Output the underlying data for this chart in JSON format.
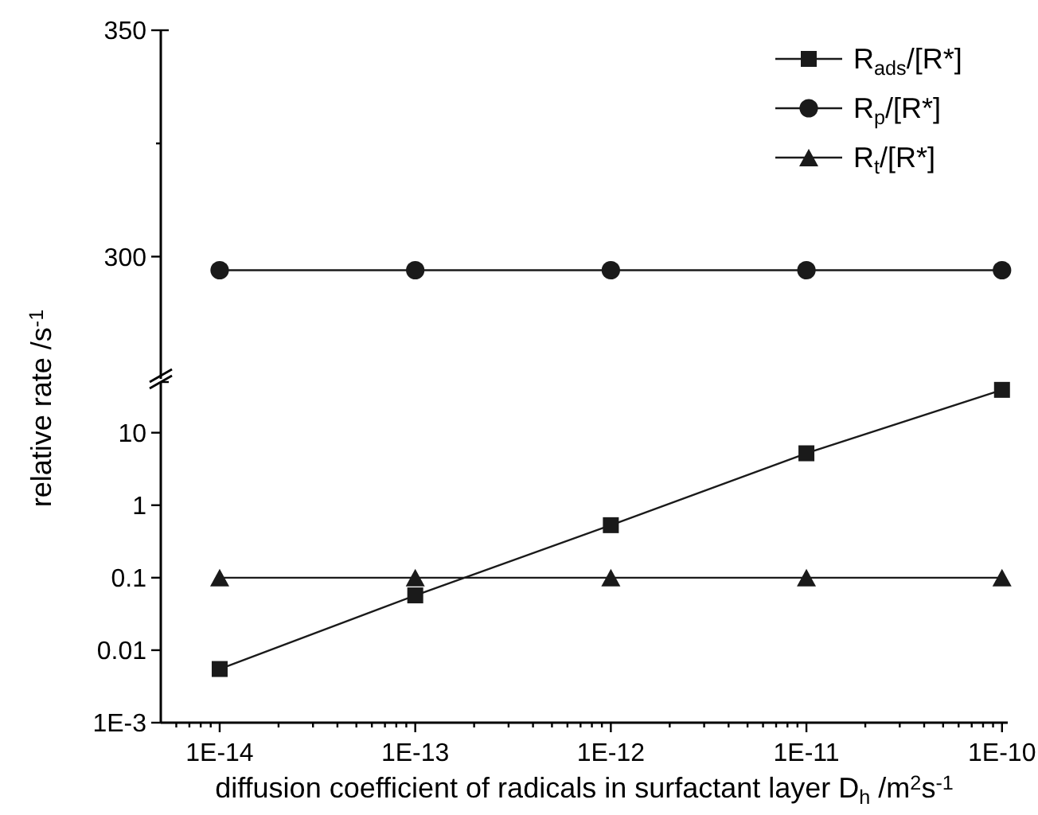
{
  "chart_data": [
    {
      "type": "line",
      "x": [
        1e-14,
        1e-13,
        1e-12,
        1e-11,
        1e-10
      ],
      "log": "x",
      "xlim": [
        5e-15,
        1.07e-10
      ],
      "ylim": [
        273,
        350
      ],
      "yticks": [
        300,
        {
          "value": 325,
          "label": null
        },
        350
      ],
      "tick_labels": "y",
      "legend": "top right",
      "marker": "circle",
      "line_style": "solid",
      "series": [
        {
          "name": "R$_{p}$/[R*]",
          "color": "#1a1a1a",
          "values": [
            297,
            297,
            297,
            297,
            297
          ]
        }
      ]
    },
    {
      "type": "line",
      "x": [
        1e-14,
        1e-13,
        1e-12,
        1e-11,
        1e-10
      ],
      "log": "xy",
      "xlim": [
        5e-15,
        1.07e-10
      ],
      "ylim": [
        0.001,
        50
      ],
      "xlabel": "diffusion coefficient of radicals in surfactant layer D$_{h}$ /m$^{2}$s$^{-1}$",
      "ylabel": "relative rate /s$^{-1}$",
      "xticks": [
        {
          "value": 1e-14,
          "label": "1E-14"
        },
        {
          "value": 1e-13,
          "label": "1E-13"
        },
        {
          "value": 1e-12,
          "label": "1E-12"
        },
        {
          "value": 1e-11,
          "label": "1E-11"
        },
        {
          "value": 1e-10,
          "label": "1E-10"
        },
        {
          "value": 6e-15,
          "label": null
        },
        {
          "value": 7e-15,
          "label": null
        },
        {
          "value": 8e-15,
          "label": null
        },
        {
          "value": 9e-15,
          "label": null
        },
        {
          "value": 2e-14,
          "label": null
        },
        {
          "value": 3e-14,
          "label": null
        },
        {
          "value": 4e-14,
          "label": null
        },
        {
          "value": 5e-14,
          "label": null
        },
        {
          "value": 6e-14,
          "label": null
        },
        {
          "value": 7e-14,
          "label": null
        },
        {
          "value": 8e-14,
          "label": null
        },
        {
          "value": 9e-14,
          "label": null
        },
        {
          "value": 2e-13,
          "label": null
        },
        {
          "value": 3e-13,
          "label": null
        },
        {
          "value": 4e-13,
          "label": null
        },
        {
          "value": 5e-13,
          "label": null
        },
        {
          "value": 6e-13,
          "label": null
        },
        {
          "value": 7e-13,
          "label": null
        },
        {
          "value": 8e-13,
          "label": null
        },
        {
          "value": 9e-13,
          "label": null
        },
        {
          "value": 2e-12,
          "label": null
        },
        {
          "value": 3e-12,
          "label": null
        },
        {
          "value": 4e-12,
          "label": null
        },
        {
          "value": 5e-12,
          "label": null
        },
        {
          "value": 6e-12,
          "label": null
        },
        {
          "value": 7e-12,
          "label": null
        },
        {
          "value": 8e-12,
          "label": null
        },
        {
          "value": 9e-12,
          "label": null
        },
        {
          "value": 2e-11,
          "label": null
        },
        {
          "value": 3e-11,
          "label": null
        },
        {
          "value": 4e-11,
          "label": null
        },
        {
          "value": 5e-11,
          "label": null
        },
        {
          "value": 6e-11,
          "label": null
        },
        {
          "value": 7e-11,
          "label": null
        },
        {
          "value": 8e-11,
          "label": null
        },
        {
          "value": 9e-11,
          "label": null
        }
      ],
      "yticks": [
        {
          "value": 0.001,
          "label": "1E-3"
        },
        0.01,
        0.1,
        1,
        10
      ],
      "legend": "top right",
      "line_style": "solid",
      "series": [
        {
          "name": "R$_{ads}$/[R*]",
          "color": "#1a1a1a",
          "marker": "square",
          "values": [
            0.0055,
            0.057,
            0.53,
            5.2,
            39
          ]
        },
        {
          "name": "R$_{t}$/[R*]",
          "color": "#1a1a1a",
          "marker": "triangle",
          "values": [
            0.1,
            0.1,
            0.1,
            0.1,
            0.1
          ]
        }
      ]
    }
  ]
}
